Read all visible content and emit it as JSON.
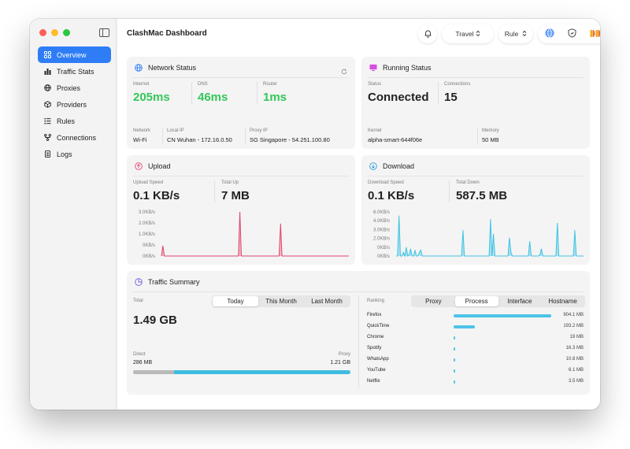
{
  "app": {
    "title": "ClashMac Dashboard"
  },
  "sidebar": {
    "items": [
      {
        "label": "Overview",
        "icon": "grid-icon",
        "active": true
      },
      {
        "label": "Traffic Stats",
        "icon": "bar-chart-icon",
        "active": false
      },
      {
        "label": "Proxies",
        "icon": "globe-icon",
        "active": false
      },
      {
        "label": "Providers",
        "icon": "cube-icon",
        "active": false
      },
      {
        "label": "Rules",
        "icon": "list-icon",
        "active": false
      },
      {
        "label": "Connections",
        "icon": "network-icon",
        "active": false
      },
      {
        "label": "Logs",
        "icon": "document-icon",
        "active": false
      }
    ]
  },
  "toolbar": {
    "profile": "Travel",
    "mode": "Rule"
  },
  "network_status": {
    "title": "Network Status",
    "internet_label": "Internet",
    "internet_value": "205ms",
    "dns_label": "DNS",
    "dns_value": "46ms",
    "router_label": "Router",
    "router_value": "1ms",
    "network_label": "Network",
    "network_value": "Wi-Fi",
    "local_ip_label": "Local IP",
    "local_ip_value": "CN Wuhan - 172.16.0.50",
    "proxy_ip_label": "Proxy IP",
    "proxy_ip_value": "SG Singapore - 54.251.100.80"
  },
  "running_status": {
    "title": "Running Status",
    "status_label": "Status",
    "status_value": "Connected",
    "connections_label": "Connections",
    "connections_value": "15",
    "kernel_label": "Kernel",
    "kernel_value": "alpha-smart-644f06e",
    "memory_label": "Memory",
    "memory_value": "50 MB"
  },
  "upload": {
    "title": "Upload",
    "speed_label": "Upload Speed",
    "speed_value": "0.1 KB/s",
    "total_label": "Total Up",
    "total_value": "7 MB",
    "y_ticks": [
      "3.0KB/s",
      "2.0KB/s",
      "1.0KB/s",
      "0KB/s",
      "0KB/s"
    ]
  },
  "download": {
    "title": "Download",
    "speed_label": "Download Speed",
    "speed_value": "0.1 KB/s",
    "total_label": "Total Down",
    "total_value": "587.5 MB",
    "y_ticks": [
      "6.0KB/s",
      "4.0KB/s",
      "3.0KB/s",
      "2.0KB/s",
      "0KB/s",
      "0KB/s"
    ]
  },
  "traffic_summary": {
    "title": "Traffic Summary",
    "total_label": "Total",
    "total_value": "1.49 GB",
    "period_tabs": [
      "Today",
      "This Month",
      "Last Month"
    ],
    "selected_period": "Today",
    "direct_label": "Direct",
    "direct_value": "286 MB",
    "proxy_label": "Proxy",
    "proxy_value": "1.21 GB",
    "direct_fraction": 0.19,
    "ranking_label": "Ranking",
    "ranking_tabs": [
      "Proxy",
      "Process",
      "Interface",
      "Hostname"
    ],
    "selected_ranking": "Process",
    "ranking": [
      {
        "name": "Firefox",
        "value": "904.1 MB",
        "fraction": 1.0
      },
      {
        "name": "QuickTime",
        "value": "193.2 MB",
        "fraction": 0.22
      },
      {
        "name": "Chrome",
        "value": "19 MB",
        "fraction": 0.02
      },
      {
        "name": "Spotify",
        "value": "16.3 MB",
        "fraction": 0.018
      },
      {
        "name": "WhatsApp",
        "value": "10.8 MB",
        "fraction": 0.012
      },
      {
        "name": "YouTube",
        "value": "6.1 MB",
        "fraction": 0.007
      },
      {
        "name": "Netflix",
        "value": "3.5 MB",
        "fraction": 0.004
      }
    ]
  },
  "colors": {
    "accent": "#2f7df6",
    "latency_green": "#34c759",
    "upload_line": "#e0446a",
    "download_line": "#3fc3e3",
    "ranking_bar": "#4cc3e8"
  },
  "chart_data": [
    {
      "type": "area",
      "ylabel": "",
      "ylim": [
        0,
        3
      ],
      "y_unit": "KB/s",
      "series": [
        {
          "values": [
            0,
            0.7,
            0,
            0,
            0,
            0,
            0,
            0,
            0,
            0,
            0,
            0,
            0,
            0,
            0,
            0,
            0,
            0,
            0,
            0,
            0,
            0,
            0,
            0,
            0,
            0,
            0,
            0,
            0,
            0,
            0,
            0,
            0,
            0,
            0,
            0,
            0,
            0,
            0,
            0,
            0,
            0,
            0,
            0,
            0,
            0,
            0,
            0,
            0,
            0,
            0,
            0,
            0,
            0,
            3.0,
            0,
            0,
            0,
            0,
            0,
            0,
            0,
            0,
            0,
            0,
            0,
            0,
            0,
            0,
            0,
            0,
            0,
            0,
            0,
            0,
            0,
            0,
            0,
            0,
            0,
            0,
            0,
            2.2,
            0,
            0,
            0,
            0,
            0,
            0,
            0,
            0,
            0,
            0,
            0,
            0,
            0,
            0,
            0,
            0,
            0,
            0,
            0,
            0,
            0,
            0,
            0,
            0,
            0,
            0,
            0,
            0,
            0,
            0,
            0,
            0,
            0,
            0,
            0,
            0,
            0,
            0,
            0,
            0,
            0,
            0,
            0,
            0,
            0,
            0,
            0
          ]
        }
      ]
    },
    {
      "type": "area",
      "ylabel": "",
      "ylim": [
        0,
        6
      ],
      "y_unit": "KB/s",
      "series": [
        {
          "values": [
            0,
            0,
            5.5,
            0,
            0,
            0.5,
            0,
            1.2,
            0,
            0.2,
            1.0,
            0,
            0,
            0.8,
            0,
            0,
            0.5,
            0.8,
            0,
            0,
            0,
            0,
            0,
            0,
            0,
            0,
            0,
            0,
            0,
            0,
            0,
            0,
            0,
            0,
            0,
            0,
            0,
            0,
            0,
            0,
            0,
            0,
            0,
            0,
            0,
            0,
            3.5,
            0,
            0,
            0,
            0,
            0,
            0,
            0,
            0,
            0,
            0,
            0,
            0,
            0,
            0,
            0,
            0,
            0,
            0,
            5.0,
            0,
            3.0,
            0,
            0,
            0,
            0,
            0,
            0,
            0,
            0,
            0,
            0,
            2.5,
            0.5,
            0,
            0,
            0,
            0,
            0,
            0,
            0,
            0,
            0,
            0,
            0,
            0,
            2.0,
            0,
            0,
            0,
            0,
            0,
            0,
            0.2,
            1.0,
            0,
            0,
            0,
            0,
            0,
            0,
            0,
            0,
            0,
            0,
            4.5,
            0,
            0,
            0,
            0,
            0,
            0,
            0,
            0,
            0,
            0,
            0,
            3.5,
            0,
            0,
            0,
            0,
            0,
            0
          ]
        }
      ]
    }
  ]
}
